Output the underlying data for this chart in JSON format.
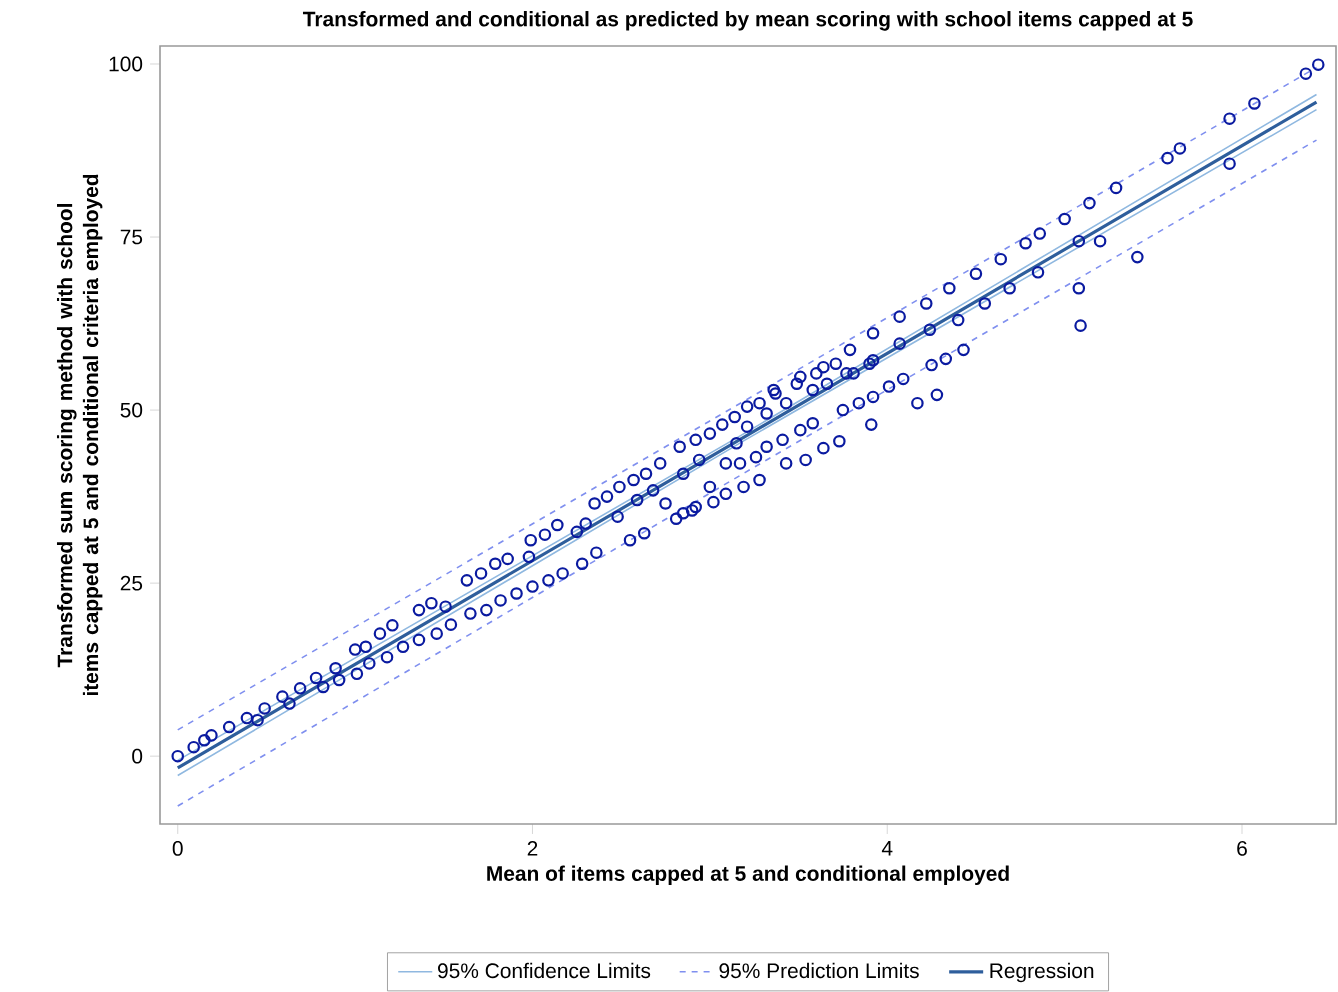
{
  "chart_data": {
    "type": "scatter",
    "title": "Transformed and conditional as predicted by mean scoring with school items capped at 5",
    "xlabel": "Mean of items capped at 5 and conditional employed",
    "ylabel": "Transformed sum scoring method with school items capped at 5 and conditional criteria employed",
    "xlim": [
      -0.1,
      6.53
    ],
    "ylim": [
      -9.8,
      102.6
    ],
    "xticks": [
      0,
      2,
      4,
      6
    ],
    "yticks": [
      0,
      25,
      50,
      75,
      100
    ],
    "grid": false,
    "legend": "bottom",
    "series": [
      {
        "name": "95% Confidence Limits",
        "type": "line",
        "line_style": "solid",
        "color": "#8fb8e0",
        "x": [
          0,
          3.2,
          6.42
        ],
        "values": [
          -0.6,
          46.7,
          95.6
        ]
      },
      {
        "type": "line",
        "line_style": "solid",
        "color": "#8fb8e0",
        "x": [
          0,
          3.2,
          6.42
        ],
        "values": [
          -2.8,
          45.7,
          93.4
        ]
      },
      {
        "name": "95% Prediction Limits",
        "type": "line",
        "line_style": "dashed",
        "color": "#7f8fef",
        "x": [
          0,
          3.2,
          6.42
        ],
        "values": [
          3.8,
          51.4,
          99.5
        ]
      },
      {
        "type": "line",
        "line_style": "dashed",
        "color": "#7f8fef",
        "x": [
          0,
          3.2,
          6.42
        ],
        "values": [
          -7.2,
          41.0,
          89.0
        ]
      },
      {
        "name": "Regression",
        "type": "line",
        "line_style": "solid",
        "color": "#2e5e9c",
        "x": [
          0,
          3.2,
          6.42
        ],
        "values": [
          -1.7,
          46.2,
          94.5
        ]
      },
      {
        "marker": "circle",
        "color": "#0a1aa0",
        "x": [
          0,
          0.09,
          0.15,
          0.19,
          0.29,
          0.39,
          0.45,
          0.49,
          0.59,
          0.63,
          0.69,
          0.78,
          0.82,
          0.89,
          0.91,
          1.0,
          1.01,
          1.06,
          1.08,
          1.14,
          1.18,
          1.21,
          1.27,
          1.36,
          1.36,
          1.43,
          1.46,
          1.51,
          1.54,
          1.63,
          1.65,
          1.71,
          1.74,
          1.79,
          1.82,
          1.86,
          1.91,
          1.98,
          1.99,
          2.0,
          2.07,
          2.09,
          2.14,
          2.17,
          2.25,
          2.28,
          2.3,
          2.36,
          2.35,
          2.42,
          2.48,
          2.49,
          2.55,
          2.57,
          2.59,
          2.63,
          2.64,
          2.72,
          2.68,
          2.75,
          2.81,
          2.83,
          2.85,
          2.9,
          2.92,
          2.94,
          3.0,
          3.0,
          3.02,
          3.07,
          3.09,
          3.09,
          3.14,
          3.15,
          2.85,
          2.92,
          3.19,
          3.28,
          3.17,
          3.26,
          3.32,
          3.43,
          3.54,
          3.64,
          3.73,
          3.91,
          3.41,
          3.51,
          3.58,
          3.75,
          3.84,
          3.92,
          4.01,
          4.09,
          4.17,
          4.28,
          3.28,
          3.37,
          3.49,
          3.6,
          3.71,
          3.21,
          3.32,
          3.66,
          3.81,
          3.9,
          3.21,
          3.36,
          3.51,
          3.64,
          3.79,
          3.92,
          4.07,
          4.22,
          4.35,
          4.5,
          4.64,
          4.78,
          4.86,
          5.0,
          5.14,
          5.29,
          5.58,
          5.65,
          5.93,
          6.07,
          6.36,
          6.43,
          3.43,
          3.58,
          3.77,
          3.92,
          4.07,
          4.24,
          4.4,
          4.55,
          4.69,
          4.85,
          5.08,
          5.2,
          5.93,
          4.25,
          4.33,
          4.43,
          5.08,
          5.09,
          5.41
        ],
        "values": [
          0,
          1.3,
          2.3,
          3.0,
          4.2,
          5.5,
          5.2,
          6.9,
          8.6,
          7.6,
          9.8,
          11.3,
          10.0,
          12.7,
          11.0,
          15.4,
          11.9,
          15.8,
          13.4,
          17.7,
          14.3,
          18.9,
          15.8,
          21.1,
          16.8,
          22.1,
          17.7,
          21.6,
          19.0,
          25.4,
          20.6,
          26.4,
          21.1,
          27.8,
          22.5,
          28.5,
          23.5,
          28.8,
          31.2,
          24.5,
          32.0,
          25.4,
          33.4,
          26.4,
          32.4,
          27.8,
          33.6,
          29.4,
          36.5,
          37.5,
          34.6,
          38.9,
          31.2,
          39.9,
          37.0,
          32.2,
          40.8,
          42.3,
          38.4,
          36.5,
          34.3,
          44.7,
          40.8,
          35.5,
          45.7,
          42.8,
          38.9,
          46.6,
          36.7,
          47.9,
          42.3,
          37.9,
          49.0,
          45.2,
          35.1,
          36.0,
          38.9,
          39.9,
          42.3,
          43.2,
          44.7,
          42.3,
          42.8,
          44.5,
          45.5,
          47.9,
          45.7,
          47.1,
          48.1,
          50.0,
          51.0,
          51.9,
          53.4,
          54.5,
          51.0,
          52.2,
          51.0,
          52.4,
          53.8,
          55.3,
          56.7,
          47.6,
          49.5,
          53.8,
          55.3,
          56.7,
          50.5,
          52.9,
          54.8,
          56.2,
          58.7,
          61.1,
          63.5,
          65.4,
          67.6,
          69.7,
          71.8,
          74.1,
          75.5,
          77.6,
          79.9,
          82.1,
          86.4,
          87.8,
          92.1,
          94.3,
          98.6,
          99.9,
          51.0,
          52.9,
          55.3,
          57.2,
          59.6,
          61.6,
          63.0,
          65.4,
          67.6,
          69.9,
          74.4,
          74.4,
          85.6,
          56.5,
          57.4,
          58.7,
          67.6,
          62.2,
          72.1
        ]
      }
    ]
  }
}
